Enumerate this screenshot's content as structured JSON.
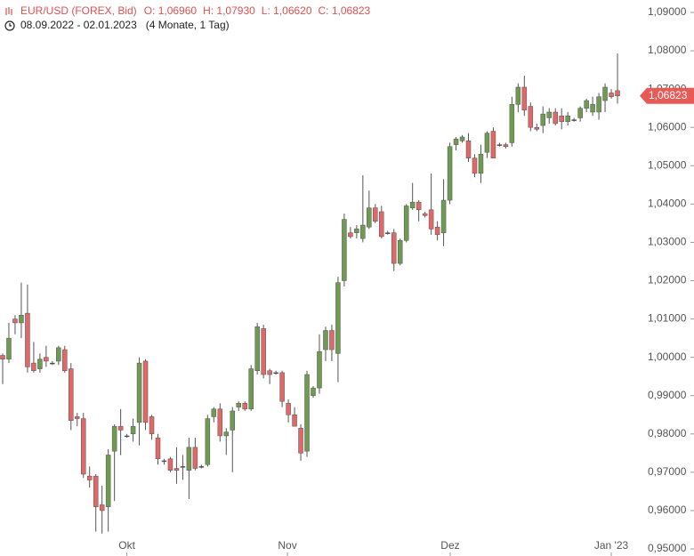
{
  "chart_data": {
    "type": "candlestick",
    "symbol": "EUR/USD (FOREX, Bid)",
    "ohlc_summary": [
      "O: 1,06960",
      "H: 1,07930",
      "L: 1,06620",
      "C: 1,06823"
    ],
    "date_range": "08.09.2022 - 02.01.2023",
    "duration": "(4 Monate, 1 Tag)",
    "up_color": "#6f9a52",
    "down_color": "#e06868",
    "ylim": [
      0.95,
      1.09
    ],
    "yticks": [
      {
        "value": 0.95,
        "label": "0,95000"
      },
      {
        "value": 0.96,
        "label": "0,96000"
      },
      {
        "value": 0.97,
        "label": "0,97000"
      },
      {
        "value": 0.98,
        "label": "0,98000"
      },
      {
        "value": 0.99,
        "label": "0,99000"
      },
      {
        "value": 1.0,
        "label": "1,00000"
      },
      {
        "value": 1.01,
        "label": "1,01000"
      },
      {
        "value": 1.02,
        "label": "1,02000"
      },
      {
        "value": 1.03,
        "label": "1,03000"
      },
      {
        "value": 1.04,
        "label": "1,04000"
      },
      {
        "value": 1.05,
        "label": "1,05000"
      },
      {
        "value": 1.06,
        "label": "1,06000"
      },
      {
        "value": 1.07,
        "label": "1,07000"
      },
      {
        "value": 1.08,
        "label": "1,08000"
      },
      {
        "value": 1.09,
        "label": "1,09000"
      }
    ],
    "xticks": [
      {
        "value": 20,
        "label": "Okt"
      },
      {
        "value": 45.85,
        "label": "Nov"
      },
      {
        "value": 72.06,
        "label": "Dez"
      },
      {
        "value": 98,
        "label": "Jan '23"
      }
    ],
    "last_price": {
      "value": 1.06823,
      "label": "1,06823"
    },
    "open": [
      1.0005,
      0.9995,
      1.01,
      1.009,
      1.0115,
      0.9985,
      0.997,
      1.0,
      0.9985,
      0.999,
      1.002,
      0.997,
      0.9845,
      0.984,
      0.969,
      0.969,
      0.9615,
      0.961,
      0.9755,
      0.982,
      0.9795,
      0.98,
      0.983,
      0.999,
      0.9845,
      0.979,
      0.973,
      0.9735,
      0.971,
      0.9715,
      0.9705,
      0.9765,
      0.9715,
      0.972,
      0.9845,
      0.9865,
      0.9795,
      0.981,
      0.987,
      0.988,
      0.9865,
      0.9965,
      1.0075,
      0.9965,
      0.996,
      0.996,
      0.988,
      0.985,
      0.9815,
      0.9755,
      0.99,
      0.992,
      1.002,
      1.007,
      1.001,
      1.02,
      1.0325,
      1.0325,
      1.031,
      1.034,
      1.039,
      1.038,
      1.0325,
      1.0325,
      1.0245,
      1.0305,
      1.039,
      1.0405,
      1.0375,
      1.0385,
      1.034,
      1.0325,
      1.041,
      1.0555,
      1.0565,
      1.0565,
      1.052,
      1.048,
      1.0535,
      1.059,
      1.0555,
      1.0555,
      1.056,
      1.066,
      1.0705,
      1.0655,
      1.06,
      1.0605,
      1.0625,
      1.064,
      1.063,
      1.0615,
      1.062,
      1.0625,
      1.065,
      1.064,
      1.064,
      1.067,
      1.069,
      1.0696
    ],
    "high": [
      1.001,
      1.009,
      1.011,
      1.0195,
      1.019,
      1.004,
      1.001,
      1.003,
      0.999,
      1.003,
      1.003,
      0.9985,
      0.9855,
      0.9855,
      0.9715,
      0.9695,
      0.9665,
      0.976,
      0.9825,
      0.9865,
      0.98,
      0.984,
      1.0,
      0.9995,
      0.985,
      0.98,
      0.9735,
      0.974,
      0.9765,
      0.9745,
      0.979,
      0.979,
      0.972,
      0.985,
      0.987,
      0.988,
      0.9815,
      0.987,
      0.9885,
      0.9885,
      0.998,
      1.009,
      1.0085,
      0.997,
      0.9965,
      0.9965,
      0.989,
      0.987,
      0.9825,
      0.9965,
      0.9925,
      1.006,
      1.008,
      1.0085,
      1.021,
      1.0375,
      1.034,
      1.0345,
      1.0475,
      1.0435,
      1.04,
      1.0395,
      1.033,
      1.0335,
      1.031,
      1.04,
      1.0455,
      1.041,
      1.038,
      1.048,
      1.0355,
      1.0465,
      1.056,
      1.0575,
      1.058,
      1.0585,
      1.053,
      1.0555,
      1.059,
      1.06,
      1.056,
      1.056,
      1.068,
      1.0715,
      1.0735,
      1.0665,
      1.061,
      1.0655,
      1.065,
      1.065,
      1.065,
      1.064,
      1.0625,
      1.0655,
      1.0675,
      1.068,
      1.069,
      1.0715,
      1.07,
      1.0793
    ],
    "low": [
      0.993,
      0.9985,
      1.006,
      1.005,
      0.996,
      0.996,
      0.996,
      0.9975,
      0.998,
      0.998,
      0.996,
      0.981,
      0.982,
      0.9685,
      0.966,
      0.9545,
      0.954,
      0.9545,
      0.9625,
      0.9745,
      0.979,
      0.978,
      0.977,
      0.981,
      0.9785,
      0.972,
      0.972,
      0.97,
      0.967,
      0.968,
      0.963,
      0.9705,
      0.971,
      0.9715,
      0.983,
      0.978,
      0.9745,
      0.97,
      0.986,
      0.986,
      0.986,
      0.9955,
      0.9945,
      0.993,
      0.9955,
      0.987,
      0.983,
      0.982,
      0.973,
      0.974,
      0.9895,
      0.9905,
      0.999,
      0.999,
      0.9935,
      1.0185,
      1.031,
      1.031,
      1.03,
      1.0335,
      1.035,
      1.031,
      1.032,
      1.0225,
      1.024,
      1.03,
      1.0385,
      1.0355,
      1.0365,
      1.032,
      1.0305,
      1.029,
      1.04,
      1.054,
      1.056,
      1.051,
      1.047,
      1.0455,
      1.052,
      1.052,
      1.055,
      1.0545,
      1.055,
      1.064,
      1.063,
      1.059,
      1.059,
      1.0585,
      1.061,
      1.0605,
      1.0595,
      1.0605,
      1.0615,
      1.0615,
      1.064,
      1.063,
      1.062,
      1.064,
      1.0675,
      1.0662
    ],
    "close": [
      0.9995,
      1.005,
      1.009,
      1.011,
      0.9975,
      0.9965,
      0.9995,
      0.999,
      0.9985,
      1.0025,
      0.9965,
      0.9835,
      0.984,
      0.9695,
      0.968,
      0.961,
      0.96,
      0.9745,
      0.982,
      0.981,
      0.9795,
      0.982,
      0.9985,
      0.983,
      0.98,
      0.9735,
      0.973,
      0.9705,
      0.9705,
      0.9715,
      0.9765,
      0.971,
      0.9715,
      0.984,
      0.9865,
      0.9795,
      0.9805,
      0.986,
      0.988,
      0.9865,
      0.997,
      1.008,
      0.9955,
      0.9955,
      0.996,
      0.9885,
      0.985,
      0.982,
      0.975,
      0.9955,
      0.992,
      1.0015,
      1.007,
      1.002,
      1.0195,
      1.036,
      1.0315,
      1.0335,
      1.0345,
      1.039,
      1.0355,
      1.0315,
      1.0325,
      1.0245,
      1.0305,
      1.0395,
      1.0405,
      1.0385,
      1.037,
      1.0335,
      1.032,
      1.041,
      1.055,
      1.057,
      1.0575,
      1.052,
      1.048,
      1.053,
      1.0585,
      1.052,
      1.0555,
      1.055,
      1.066,
      1.0705,
      1.0645,
      1.06,
      1.0595,
      1.0635,
      1.064,
      1.061,
      1.0615,
      1.063,
      1.062,
      1.065,
      1.067,
      1.066,
      1.068,
      1.0705,
      1.068,
      1.06823
    ]
  }
}
